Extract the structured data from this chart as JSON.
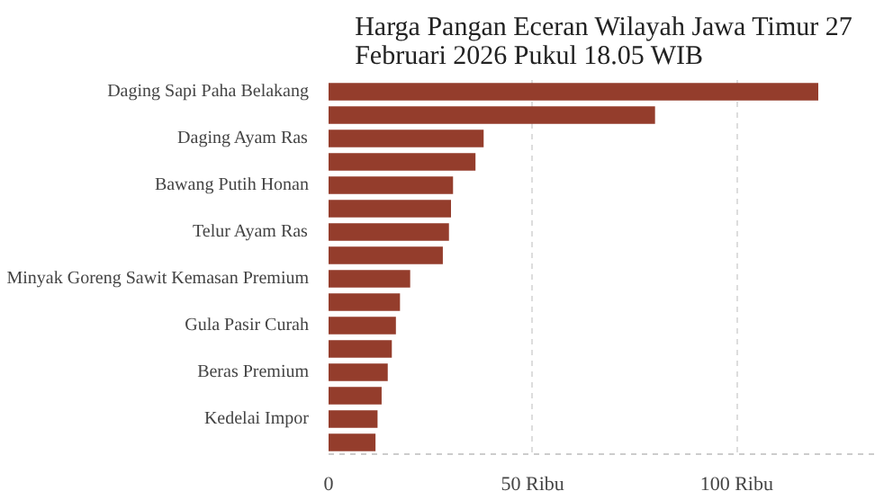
{
  "chart_data": {
    "type": "bar",
    "orientation": "horizontal",
    "title": "Harga Pangan Eceran Wilayah Jawa Timur 27 Februari 2026 Pukul 18.05 WIB",
    "categories": [
      "Daging Sapi Paha Belakang",
      null,
      "Daging Ayam Ras",
      null,
      "Bawang Putih Honan",
      null,
      "Telur Ayam Ras",
      null,
      "Minyak Goreng Sawit Kemasan Premium",
      null,
      "Gula Pasir Curah",
      null,
      "Beras Premium",
      null,
      "Kedelai Impor",
      null
    ],
    "values": [
      120,
      80,
      38,
      36,
      30.5,
      30,
      29.5,
      28,
      20,
      17.5,
      16.5,
      15.5,
      14.5,
      13,
      12,
      11.5
    ],
    "color": "#943d2c",
    "xlim": [
      0,
      135
    ],
    "xticks": [
      0,
      {
        "value": 50,
        "label": "50 Ribu"
      },
      {
        "value": 100,
        "label": "100 Ribu"
      }
    ],
    "grid": true
  }
}
